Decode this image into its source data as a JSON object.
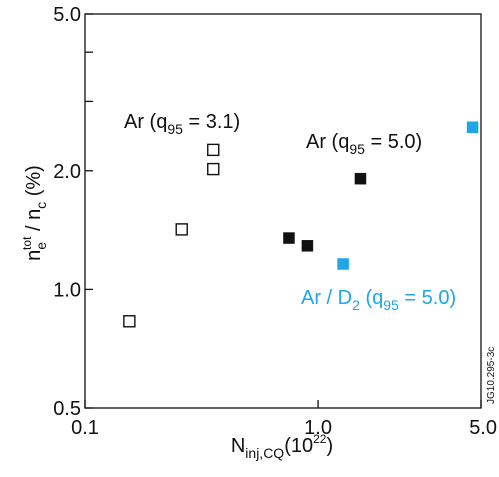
{
  "chart_data": {
    "type": "scatter",
    "xscale": "log",
    "yscale": "log",
    "xlim": [
      0.1,
      5.0
    ],
    "ylim": [
      0.5,
      5.0
    ],
    "xticks": [
      "0.1",
      "1.0",
      "5.0"
    ],
    "yticks": [
      "0.5",
      "1.0",
      "2.0",
      "5.0"
    ],
    "xlabel": {
      "main": "N",
      "sub": "inj,CQ",
      "after": "(10",
      "sup": "22",
      "end": ")"
    },
    "ylabel": {
      "n": "n",
      "sub": "e",
      "sup": "tot",
      "mid": " / n",
      "sub2": "c",
      "end": " (%)"
    },
    "series": [
      {
        "name": "Ar (q95 = 3.1)",
        "label": {
          "pre": "Ar (q",
          "sub": "95",
          "post": " = 3.1)"
        },
        "marker": "open-square",
        "color": "#111111",
        "points": [
          [
            0.155,
            0.83
          ],
          [
            0.26,
            1.42
          ],
          [
            0.355,
            2.02
          ],
          [
            0.355,
            2.26
          ]
        ]
      },
      {
        "name": "Ar (q95 = 5.0)",
        "label": {
          "pre": "Ar (q",
          "sub": "95",
          "post": " = 5.0)"
        },
        "marker": "filled-square",
        "color": "#111111",
        "points": [
          [
            0.75,
            1.35
          ],
          [
            0.9,
            1.29
          ],
          [
            1.52,
            1.91
          ]
        ]
      },
      {
        "name": "Ar/D2 (q95 = 5.0)",
        "label": {
          "pre": "Ar / D",
          "sub": "2",
          "mid": " (q",
          "sub2": "95",
          "post": " = 5.0)"
        },
        "marker": "filled-square",
        "color": "#1ea6e6",
        "points": [
          [
            1.28,
            1.16
          ],
          [
            4.6,
            2.58
          ]
        ]
      }
    ],
    "watermark": "JG10.295-3c",
    "grid": false
  }
}
